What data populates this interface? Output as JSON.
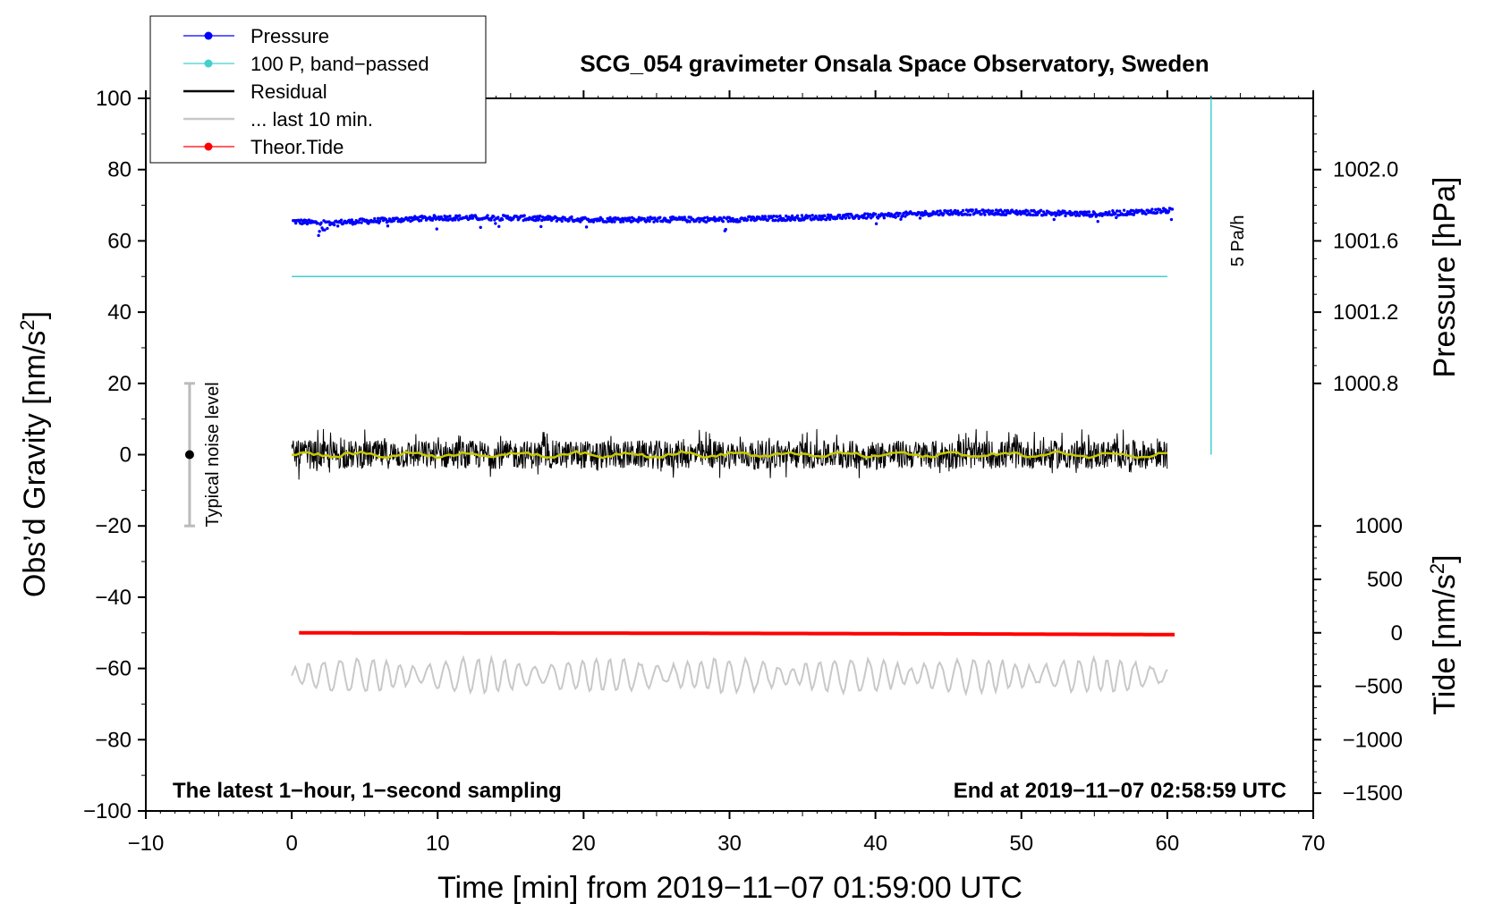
{
  "chart_data": {
    "type": "line",
    "title": "SCG_054 gravimeter Onsala Space Observatory, Sweden",
    "xlabel": "Time [min] from 2019−11−07 01:59:00 UTC",
    "ylabel_left": "Obs’d Gravity [nm/s",
    "ylabel_left_sup": "2",
    "ylabel_left_close": "]",
    "ylabel_right_pressure": "Pressure [hPa]",
    "ylabel_right_tide": "Tide [nm/s",
    "ylabel_right_tide_sup": "2",
    "ylabel_right_tide_close": "]",
    "xlim": [
      -10,
      70
    ],
    "ylim": [
      -100,
      100
    ],
    "x_ticks": [
      "−10",
      "0",
      "10",
      "20",
      "30",
      "40",
      "50",
      "60",
      "70"
    ],
    "x_tick_values": [
      -10,
      0,
      10,
      20,
      30,
      40,
      50,
      60,
      70
    ],
    "y_ticks": [
      "100",
      "80",
      "60",
      "40",
      "20",
      "0",
      "−20",
      "−40",
      "−60",
      "−80",
      "−100"
    ],
    "y_tick_values": [
      100,
      80,
      60,
      40,
      20,
      0,
      -20,
      -40,
      -60,
      -80,
      -100
    ],
    "pressure_axis": {
      "ticks": [
        "1002.0",
        "1001.6",
        "1001.2",
        "1000.8"
      ],
      "tick_values": [
        1002.0,
        1001.6,
        1001.2,
        1000.8
      ],
      "gravity_at_1002": 80,
      "gravity_per_hpa": 50
    },
    "tide_axis": {
      "ticks": [
        "1000",
        "500",
        "0",
        "−500",
        "−1000",
        "−1500"
      ],
      "tick_values": [
        1000,
        500,
        0,
        -500,
        -1000,
        -1500
      ],
      "gravity_at_0": -50,
      "gravity_per_unit": 0.03
    },
    "legend": [
      {
        "label": "Pressure",
        "color": "#0000ff",
        "marker": true
      },
      {
        "label": "100 P, band−passed",
        "color": "#40d0d0",
        "marker": true
      },
      {
        "label": "Residual",
        "color": "#000000",
        "marker": false
      },
      {
        "label": "... last 10 min.",
        "color": "#c8c8c8",
        "marker": false
      },
      {
        "label": "Theor.Tide",
        "color": "#ff0000",
        "marker": true
      }
    ],
    "series": [
      {
        "name": "Pressure",
        "unit": "hPa",
        "x": [
          0,
          2,
          5,
          10,
          15,
          20,
          25,
          30,
          35,
          40,
          45,
          50,
          55,
          60
        ],
        "values": [
          1001.71,
          1001.7,
          1001.71,
          1001.73,
          1001.73,
          1001.72,
          1001.72,
          1001.72,
          1001.73,
          1001.74,
          1001.76,
          1001.76,
          1001.75,
          1001.77
        ]
      },
      {
        "name": "100 P, band−passed",
        "x": [
          0,
          60
        ],
        "values": [
          50,
          50
        ]
      },
      {
        "name": "Residual",
        "x": [
          0,
          60
        ],
        "values": [
          0,
          0
        ],
        "noise_amplitude": 4
      },
      {
        "name": "... last 10 min.",
        "x": [
          0,
          60
        ],
        "values": [
          -62,
          -62
        ],
        "noise_amplitude": 3
      },
      {
        "name": "Theor.Tide",
        "unit": "nm/s²",
        "x": [
          0,
          15,
          30,
          45,
          60
        ],
        "values": [
          0,
          -2,
          -5,
          -10,
          -17
        ]
      }
    ],
    "rate_scale": {
      "label": "5 Pa/h",
      "x": 63,
      "y_range": [
        0,
        100
      ]
    },
    "noise_bar": {
      "label": "Typical noise level",
      "x": -7,
      "y_range": [
        -20,
        20
      ],
      "center": 0
    },
    "note_left": "The latest 1−hour, 1−second sampling",
    "note_right": "End at 2019−11−07 02:58:59 UTC",
    "colors": {
      "pressure": "#0000ff",
      "bandpassed": "#40d0d0",
      "residual": "#000000",
      "smoothed": "#c8c800",
      "last10": "#c8c8c8",
      "tide": "#ff0000",
      "noise_bar": "#bbbbbb"
    }
  }
}
